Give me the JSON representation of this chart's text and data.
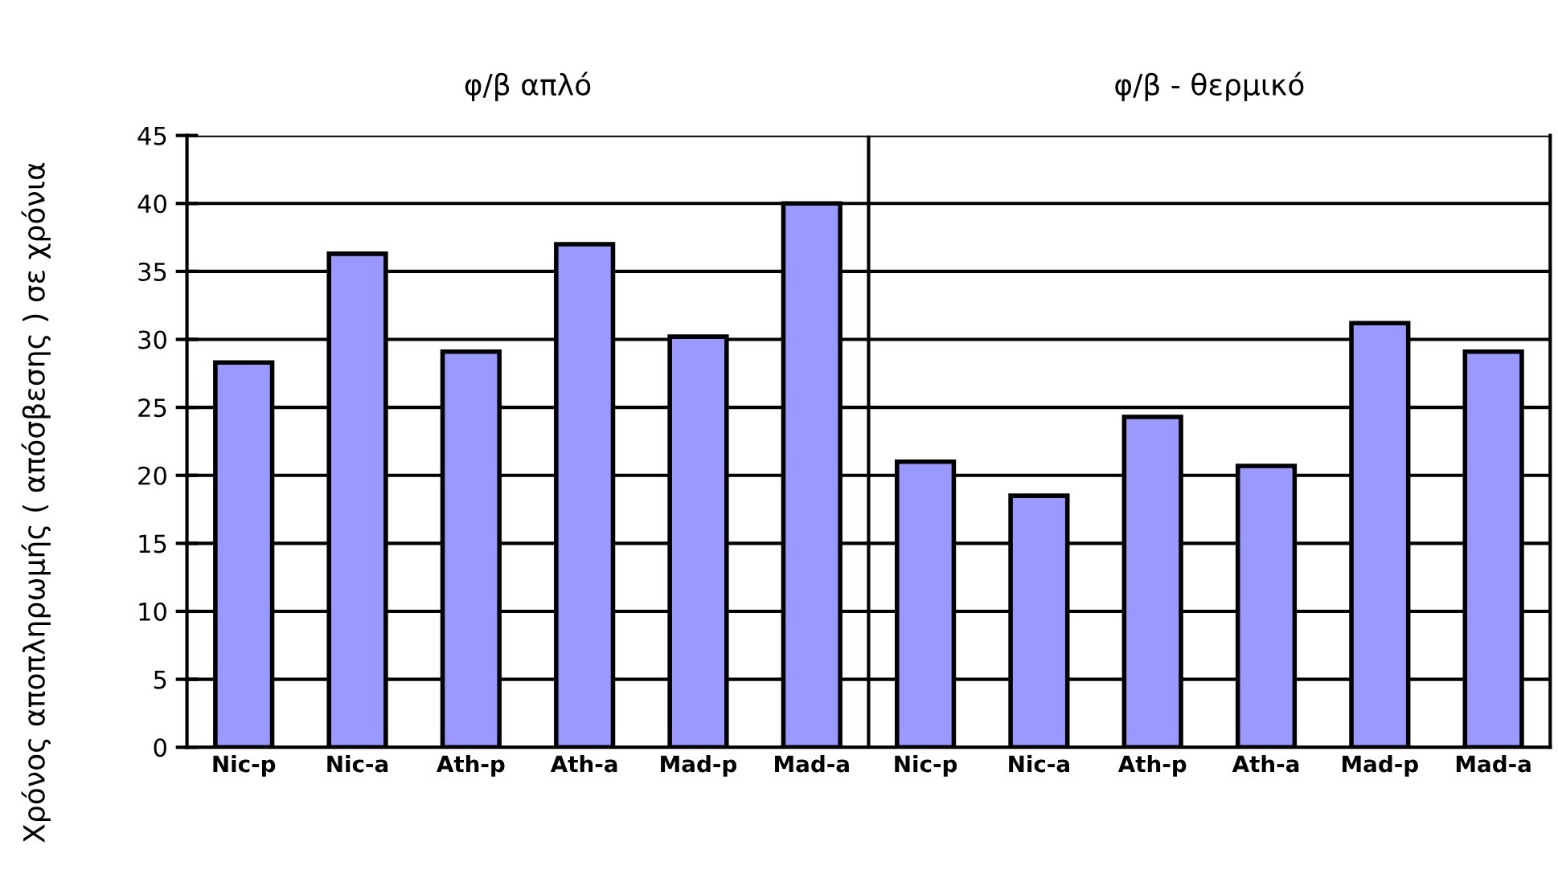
{
  "chart_data": {
    "type": "bar",
    "ylabel": "Χρόνος αποπληρωμής ( απόσβεσης ) σε χρόνια",
    "categories": [
      "Nic-p",
      "Nic-a",
      "Ath-p",
      "Ath-a",
      "Mad-p",
      "Mad-a",
      "Nic-p",
      "Nic-a",
      "Ath-p",
      "Ath-a",
      "Mad-p",
      "Mad-a"
    ],
    "values": [
      28.3,
      36.3,
      29.1,
      37.0,
      30.2,
      40.0,
      21.0,
      18.5,
      24.3,
      20.7,
      31.2,
      29.1
    ],
    "color": "#9999ff",
    "ylim": [
      0,
      45
    ],
    "yticks": [
      0,
      5,
      10,
      15,
      20,
      25,
      30,
      35,
      40,
      45
    ],
    "grid": "y",
    "annotations": [
      "φ/β απλό",
      "φ/β - θερμικό"
    ]
  }
}
